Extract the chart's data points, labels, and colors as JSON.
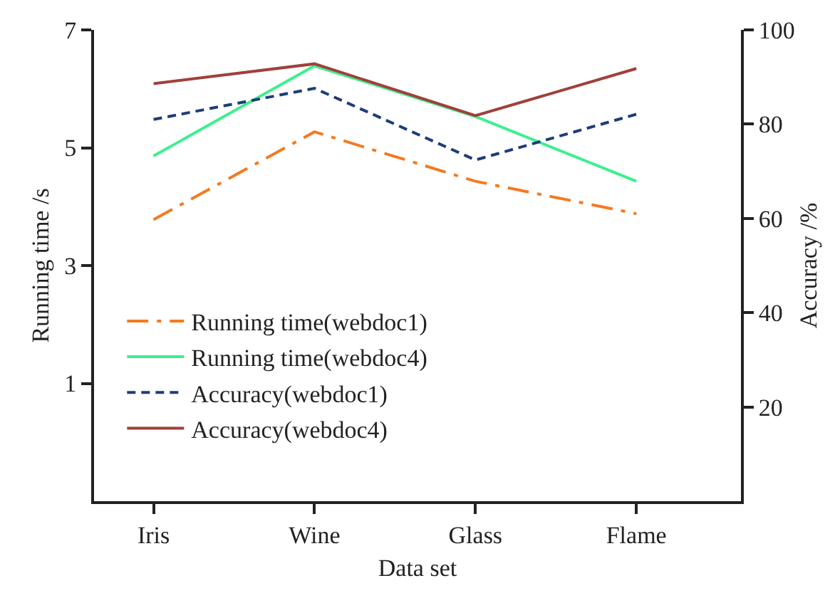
{
  "chart_data": {
    "type": "line",
    "xlabel": "Data set",
    "ylabel": "Running time /s",
    "y2label": "Accuracy /%",
    "categories": [
      "Iris",
      "Wine",
      "Glass",
      "Flame"
    ],
    "series": [
      {
        "name": "Running time(webdoc1)",
        "color": "#f47a20",
        "line_style": "dashdot",
        "values": [
          3.78,
          5.27,
          4.43,
          3.88
        ]
      },
      {
        "name": "Running time(webdoc4)",
        "color": "#3cf08c",
        "line_style": "solid",
        "values": [
          4.86,
          6.39,
          5.53,
          4.43
        ]
      },
      {
        "name": "Accuracy(webdoc1)",
        "color": "#1f3c78",
        "line_style": "dashed",
        "axis": "y2",
        "values": [
          81.0,
          87.6,
          72.4,
          82.1
        ]
      },
      {
        "name": "Accuracy(webdoc4)",
        "color": "#a0403a",
        "line_style": "solid",
        "axis": "y2",
        "values": [
          88.6,
          92.8,
          81.8,
          91.8
        ]
      }
    ],
    "ylim": [
      -1,
      7
    ],
    "yticks": [
      1,
      3,
      5,
      7
    ],
    "y2lim": [
      0,
      100
    ],
    "y2ticks": [
      20,
      40,
      60,
      80,
      100
    ],
    "legend": "bottom left",
    "marker": "none"
  }
}
